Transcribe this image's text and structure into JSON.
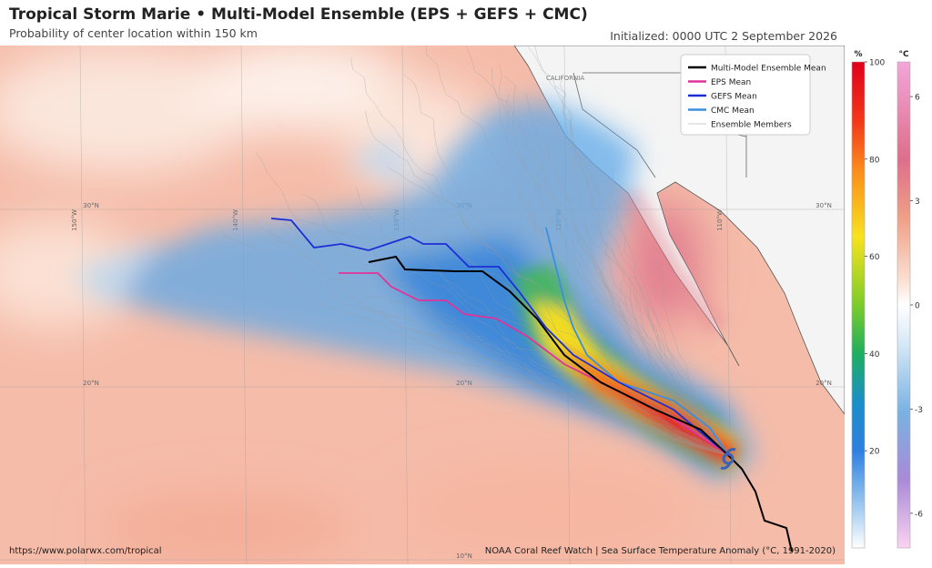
{
  "header": {
    "title": "Tropical Storm Marie • Multi-Model Ensemble (EPS + GEFS + CMC)",
    "subtitle": "Probability of center location within 150 km",
    "initialized": "Initialized: 0000 UTC 2 September 2026"
  },
  "legend": [
    {
      "name": "Multi-Model Ensemble Mean",
      "color": "#000000"
    },
    {
      "name": "EPS Mean",
      "color": "#e0339a"
    },
    {
      "name": "GEFS Mean",
      "color": "#1c2fd6"
    },
    {
      "name": "CMC Mean",
      "color": "#3a8fe0"
    },
    {
      "name": "Ensemble Members",
      "color": "#bbbbbb"
    }
  ],
  "map_labels": {
    "state": "CALIFORNIA",
    "lat": [
      "30°N",
      "20°N",
      "10°N"
    ],
    "lon": [
      "150°W",
      "140°W",
      "130°W",
      "120°W",
      "110°W"
    ]
  },
  "colorbars": [
    {
      "unit": "%",
      "range": [
        0,
        100
      ],
      "ticks": [
        20,
        40,
        60,
        80,
        100
      ]
    },
    {
      "unit": "°C",
      "range": [
        -7,
        7
      ],
      "ticks": [
        -6,
        -3,
        0,
        3,
        6
      ]
    }
  ],
  "footer": {
    "left": "https://www.polarwx.com/tropical",
    "right": "NOAA Coral Reef Watch | Sea Surface Temperature Anomaly (°C, 1991-2020)"
  }
}
